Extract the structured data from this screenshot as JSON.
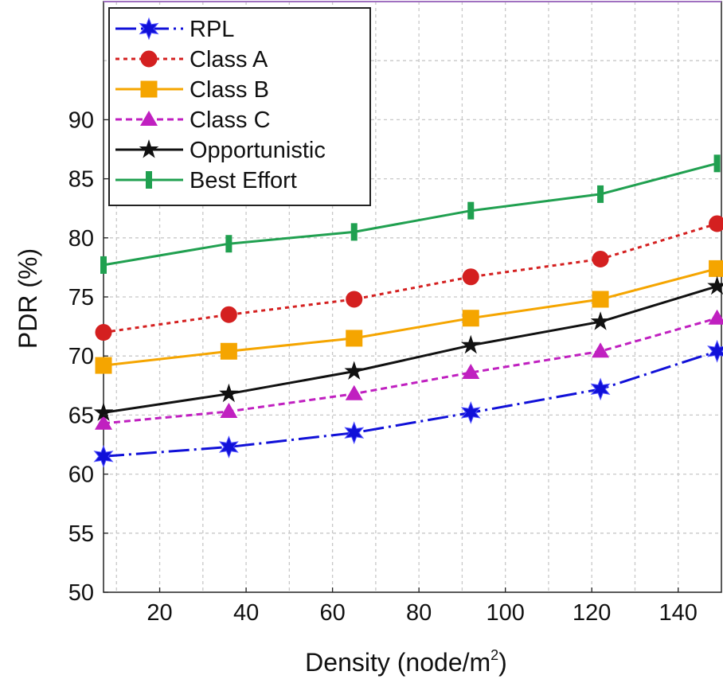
{
  "chart_data": {
    "type": "line",
    "title": "",
    "xlabel": "Density (node/m",
    "xlabel_sup": "2",
    "xlabel_close": ")",
    "ylabel": "PDR (%)",
    "xlim": [
      7,
      150
    ],
    "ylim": [
      50,
      100
    ],
    "xticks": [
      20,
      40,
      60,
      80,
      100,
      120,
      140
    ],
    "yticks": [
      50,
      55,
      60,
      65,
      70,
      75,
      80,
      85,
      90
    ],
    "x": [
      7,
      36,
      65,
      92,
      122,
      149
    ],
    "legend_position": "top-left",
    "series": [
      {
        "name": "RPL",
        "color": "#1010d8",
        "dash": "26 6 3 6",
        "marker": "star6",
        "values": [
          61.5,
          62.3,
          63.5,
          65.2,
          67.2,
          70.4
        ]
      },
      {
        "name": "Class A",
        "color": "#d42020",
        "dash": "5 5",
        "marker": "circle",
        "values": [
          72.0,
          73.5,
          74.8,
          76.7,
          78.2,
          81.2
        ]
      },
      {
        "name": "Class B",
        "color": "#f5a500",
        "dash": "",
        "marker": "square",
        "values": [
          69.2,
          70.4,
          71.5,
          73.2,
          74.8,
          77.4
        ]
      },
      {
        "name": "Class C",
        "color": "#c020c0",
        "dash": "8 5",
        "marker": "triangle",
        "values": [
          64.3,
          65.3,
          66.8,
          68.6,
          70.4,
          73.2
        ]
      },
      {
        "name": "Opportunistic",
        "color": "#111111",
        "dash": "",
        "marker": "star5",
        "values": [
          65.2,
          66.8,
          68.7,
          70.9,
          72.9,
          75.9
        ]
      },
      {
        "name": "Best Effort",
        "color": "#20a050",
        "dash": "",
        "marker": "bar",
        "values": [
          77.7,
          79.5,
          80.5,
          82.3,
          83.7,
          86.3
        ]
      }
    ]
  }
}
